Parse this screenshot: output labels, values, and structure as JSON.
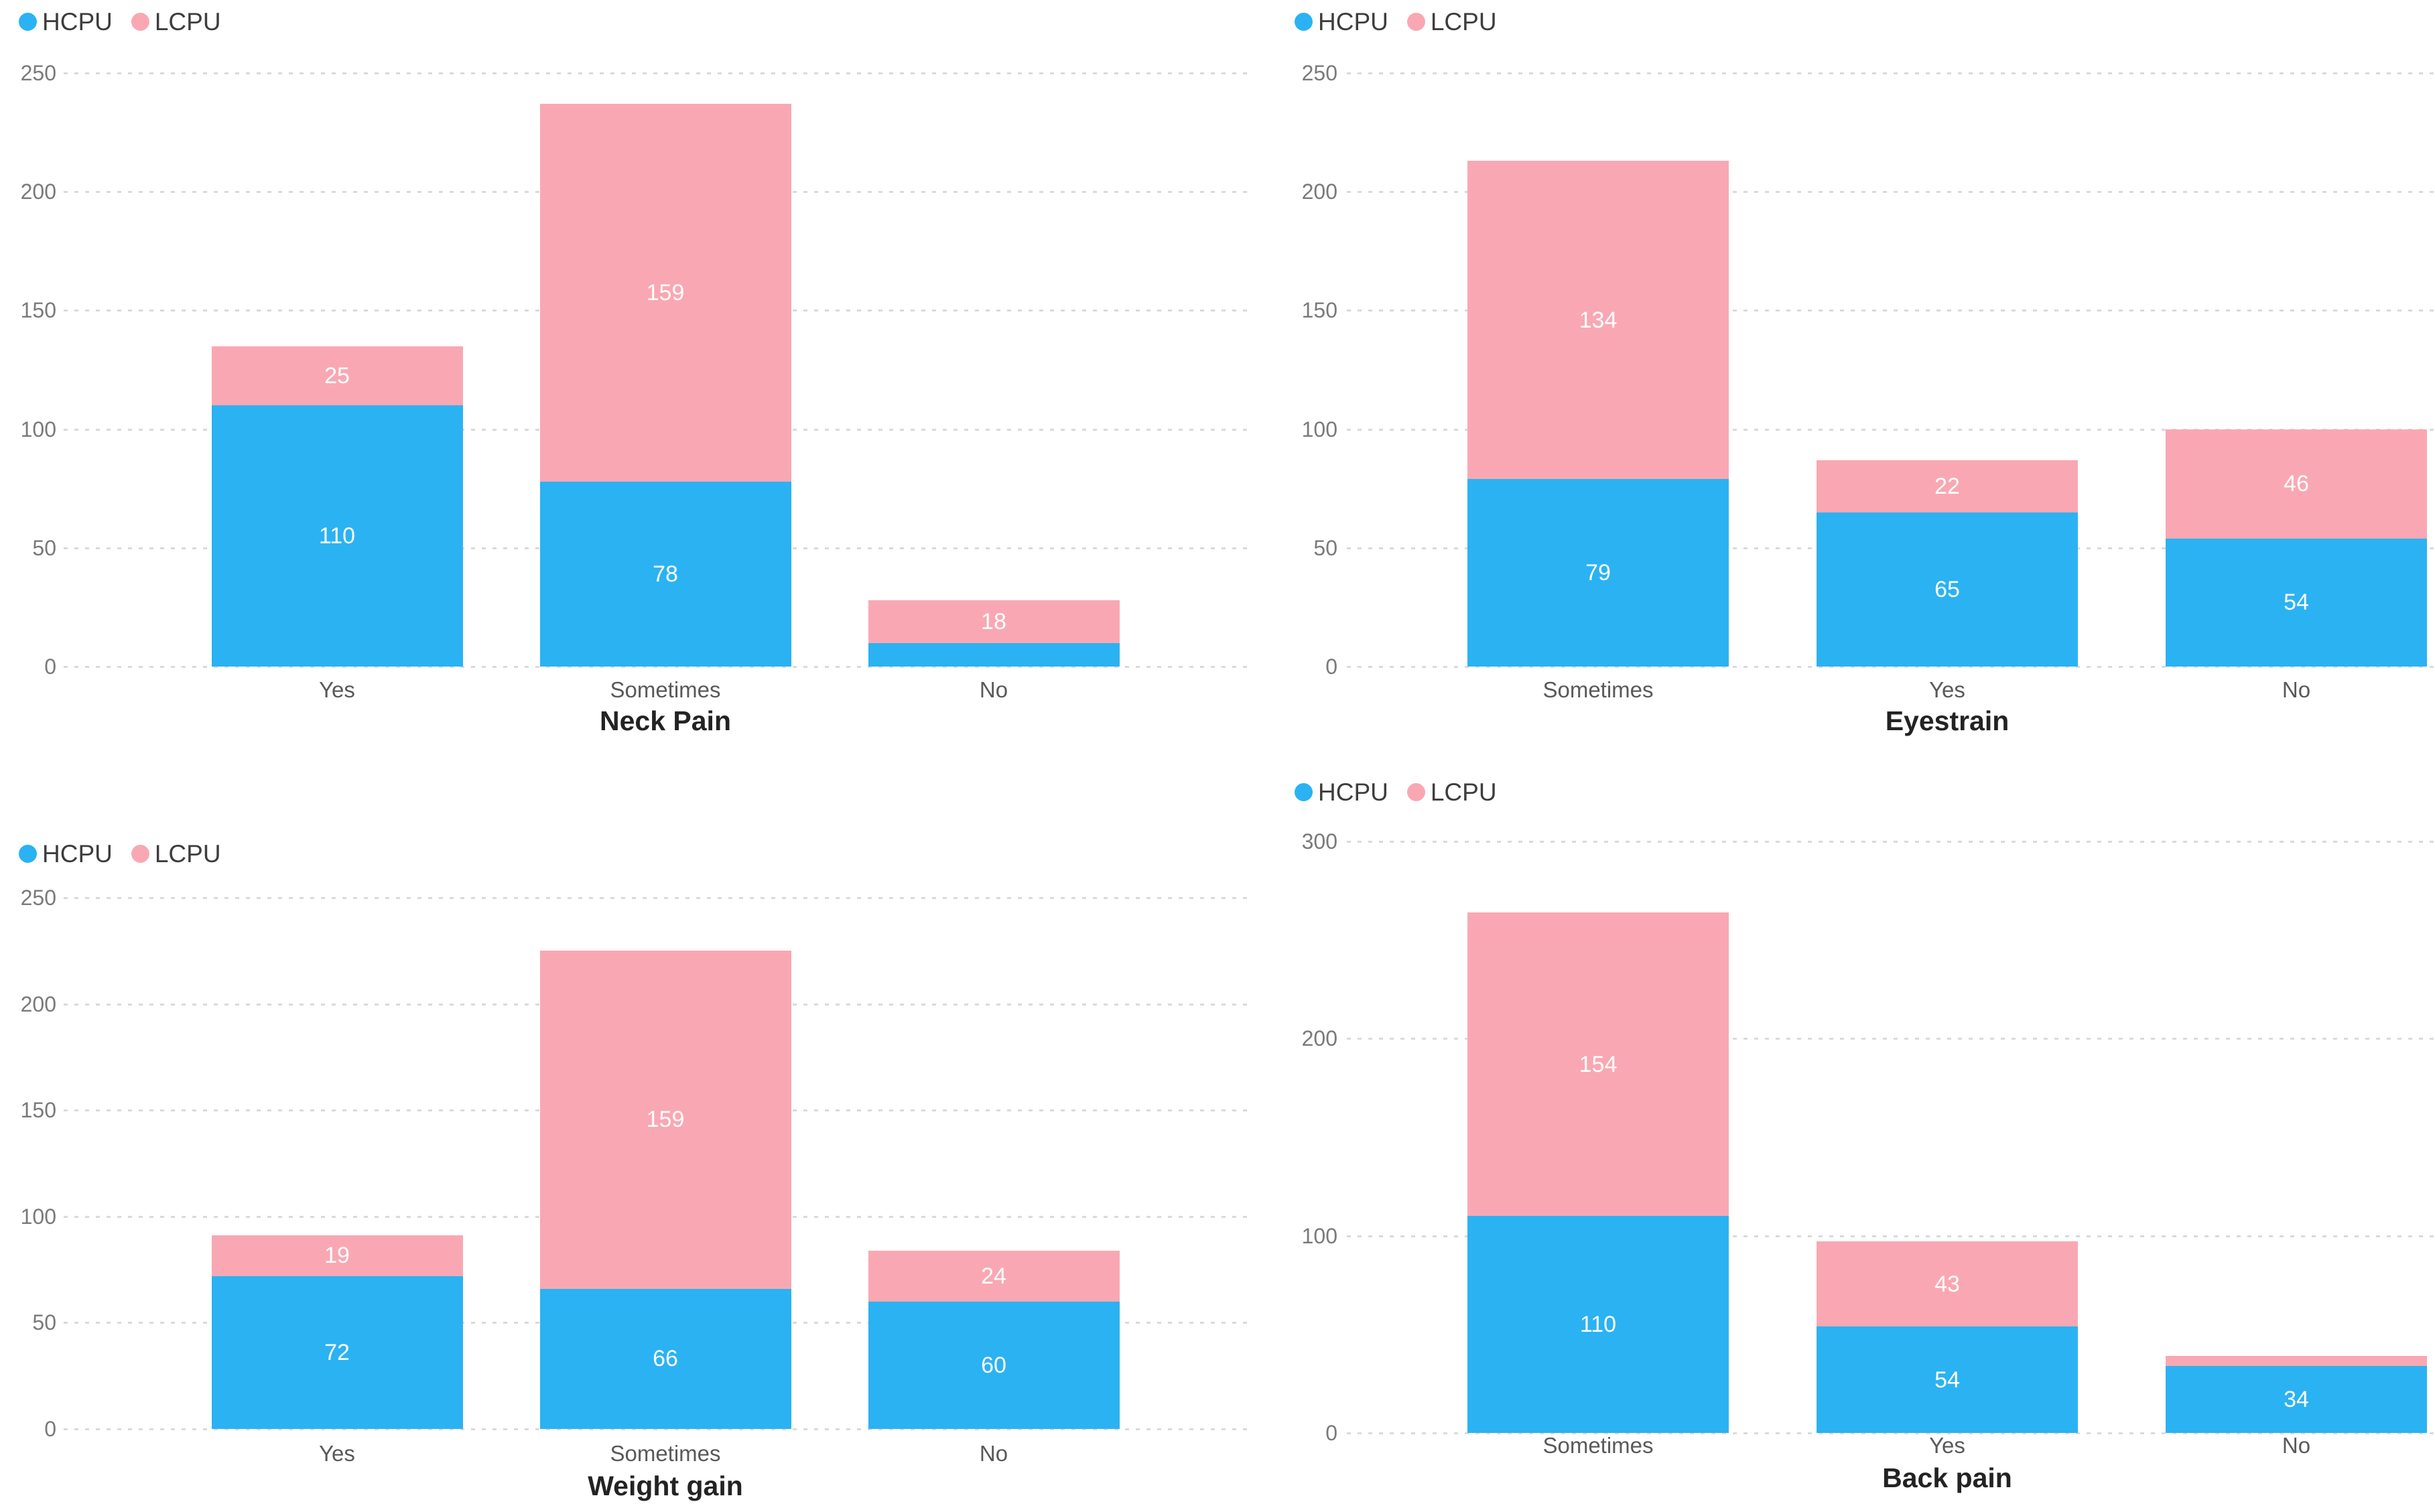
{
  "page": {
    "background": "#ffffff"
  },
  "colors": {
    "hcpu": "#2BB2F2",
    "lcpu": "#F9A8B3",
    "grid": "#DADADA",
    "tick_label": "#7A7A7A",
    "category_label": "#595959",
    "title": "#232323",
    "legend_label": "#3D3D3D",
    "bar_label": "#FFFFFF"
  },
  "chart_data": [
    {
      "id": "neck-pain",
      "type": "bar",
      "stacked": true,
      "title": "Neck Pain",
      "categories": [
        "Yes",
        "Sometimes",
        "No"
      ],
      "series": [
        {
          "name": "HCPU",
          "values": [
            110,
            78,
            10
          ],
          "labels": [
            "110",
            "78",
            ""
          ]
        },
        {
          "name": "LCPU",
          "values": [
            25,
            159,
            18
          ],
          "labels": [
            "25",
            "159",
            "18"
          ]
        }
      ],
      "totals": [
        135,
        237,
        28
      ],
      "yticks": [
        0,
        50,
        100,
        150,
        200,
        250
      ],
      "ylim": [
        0,
        250
      ],
      "grid": true,
      "gridstyle": "dotted",
      "legend_position": "top-left",
      "legend_entries": [
        "HCPU",
        "LCPU"
      ]
    },
    {
      "id": "eyestrain",
      "type": "bar",
      "stacked": true,
      "title": "Eyestrain",
      "categories": [
        "Sometimes",
        "Yes",
        "No"
      ],
      "series": [
        {
          "name": "HCPU",
          "values": [
            79,
            65,
            54
          ],
          "labels": [
            "79",
            "65",
            "54"
          ]
        },
        {
          "name": "LCPU",
          "values": [
            134,
            22,
            46
          ],
          "labels": [
            "134",
            "22",
            "46"
          ]
        }
      ],
      "totals": [
        213,
        87,
        100
      ],
      "yticks": [
        0,
        50,
        100,
        150,
        200,
        250
      ],
      "ylim": [
        0,
        250
      ],
      "grid": true,
      "gridstyle": "dotted",
      "legend_position": "top-left",
      "legend_entries": [
        "HCPU",
        "LCPU"
      ]
    },
    {
      "id": "weight-gain",
      "type": "bar",
      "stacked": true,
      "title": "Weight gain",
      "categories": [
        "Yes",
        "Sometimes",
        "No"
      ],
      "series": [
        {
          "name": "HCPU",
          "values": [
            72,
            66,
            60
          ],
          "labels": [
            "72",
            "66",
            "60"
          ]
        },
        {
          "name": "LCPU",
          "values": [
            19,
            159,
            24
          ],
          "labels": [
            "19",
            "159",
            "24"
          ]
        }
      ],
      "totals": [
        91,
        225,
        84
      ],
      "yticks": [
        0,
        50,
        100,
        150,
        200,
        250
      ],
      "ylim": [
        0,
        250
      ],
      "grid": true,
      "gridstyle": "dotted",
      "legend_position": "top-left",
      "legend_entries": [
        "HCPU",
        "LCPU"
      ]
    },
    {
      "id": "back-pain",
      "type": "bar",
      "stacked": true,
      "title": "Back pain",
      "categories": [
        "Sometimes",
        "Yes",
        "No"
      ],
      "series": [
        {
          "name": "HCPU",
          "values": [
            110,
            54,
            34
          ],
          "labels": [
            "110",
            "54",
            "34"
          ]
        },
        {
          "name": "LCPU",
          "values": [
            154,
            43,
            5
          ],
          "labels": [
            "154",
            "43",
            ""
          ]
        }
      ],
      "totals": [
        264,
        97,
        39
      ],
      "yticks": [
        0,
        100,
        200,
        300
      ],
      "ylim": [
        0,
        300
      ],
      "grid": true,
      "gridstyle": "dotted",
      "legend_position": "top-left",
      "legend_entries": [
        "HCPU",
        "LCPU"
      ]
    }
  ]
}
